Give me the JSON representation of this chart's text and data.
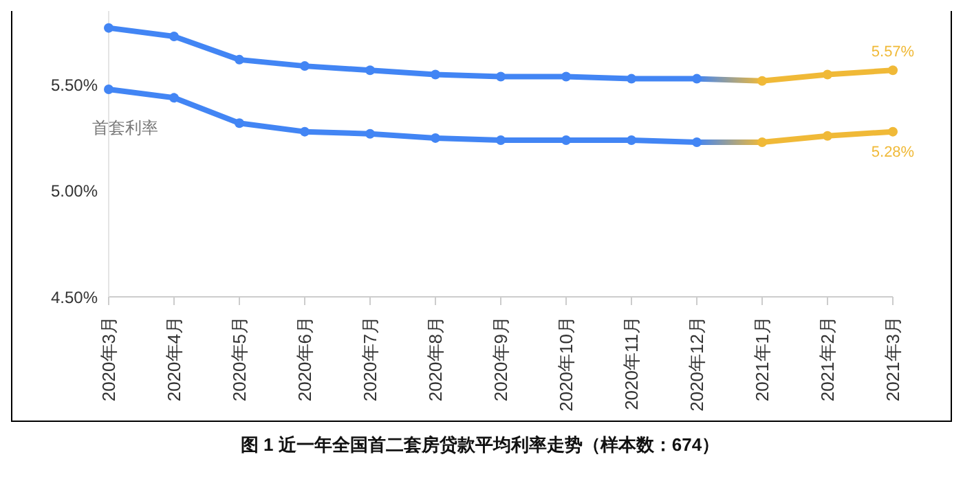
{
  "chart_data": {
    "type": "line",
    "title": "图 1  近一年全国首二套房贷款平均利率走势（样本数：674）",
    "categories": [
      "2020年3月",
      "2020年4月",
      "2020年5月",
      "2020年6月",
      "2020年7月",
      "2020年8月",
      "2020年9月",
      "2020年10月",
      "2020年11月",
      "2020年12月",
      "2021年1月",
      "2021年2月",
      "2021年3月"
    ],
    "series": [
      {
        "colors": [
          "#4285f4",
          "#4285f4",
          "#4285f4",
          "#4285f4",
          "#4285f4",
          "#4285f4",
          "#4285f4",
          "#4285f4",
          "#4285f4",
          "#4285f4",
          "#f0b937",
          "#f0b937",
          "#f0b937"
        ],
        "values": [
          5.77,
          5.73,
          5.62,
          5.59,
          5.57,
          5.55,
          5.54,
          5.54,
          5.53,
          5.53,
          5.52,
          5.55,
          5.57
        ],
        "value_labels": [
          null,
          null,
          null,
          null,
          null,
          null,
          null,
          null,
          null,
          null,
          null,
          null,
          "5.57%"
        ]
      },
      {
        "name": "首套利率",
        "colors": [
          "#4285f4",
          "#4285f4",
          "#4285f4",
          "#4285f4",
          "#4285f4",
          "#4285f4",
          "#4285f4",
          "#4285f4",
          "#4285f4",
          "#4285f4",
          "#f0b937",
          "#f0b937",
          "#f0b937"
        ],
        "values": [
          5.48,
          5.44,
          5.32,
          5.28,
          5.27,
          5.25,
          5.24,
          5.24,
          5.24,
          5.23,
          5.23,
          5.26,
          5.28
        ],
        "value_labels": [
          null,
          null,
          null,
          null,
          null,
          null,
          null,
          null,
          null,
          null,
          null,
          null,
          "5.28%"
        ]
      }
    ],
    "ylim": [
      4.5,
      5.85
    ],
    "yticks": [
      {
        "value": 4.5,
        "label": "4.50%"
      },
      {
        "value": 5,
        "label": "5.00%"
      },
      {
        "value": 5.5,
        "label": "5.50%"
      }
    ],
    "grid": false,
    "legend": false,
    "marker": "circle",
    "line_style": "solid"
  }
}
